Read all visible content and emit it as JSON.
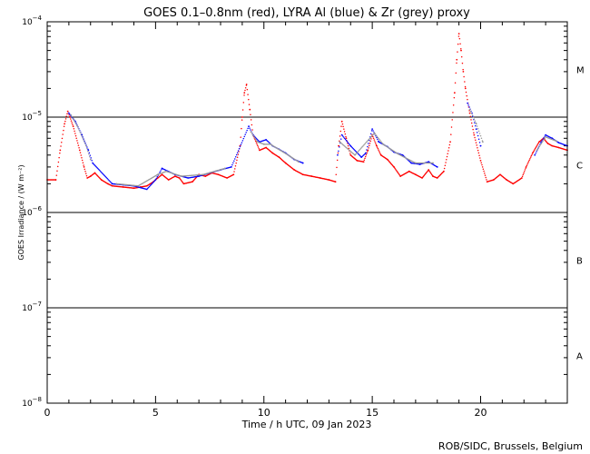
{
  "chart_data": {
    "type": "scatter",
    "title": "GOES 0.1–0.8nm (red), LYRA Al (blue) & Zr (grey) proxy",
    "xlabel": "Time / h UTC, 09 Jan 2023",
    "ylabel": "GOES Irradiance / (W m⁻²)",
    "xlim": [
      0,
      24
    ],
    "ylim": [
      1e-08,
      0.0001
    ],
    "yscale": "log",
    "x_ticks": [
      0,
      5,
      10,
      15,
      20
    ],
    "y_ticks": [
      {
        "value": 1e-08,
        "base": "10",
        "exp": "−8"
      },
      {
        "value": 1e-07,
        "base": "10",
        "exp": "−7"
      },
      {
        "value": 1e-06,
        "base": "10",
        "exp": "−6"
      },
      {
        "value": 1e-05,
        "base": "10",
        "exp": "−5"
      },
      {
        "value": 0.0001,
        "base": "10",
        "exp": "−4"
      }
    ],
    "flare_class_lines": [
      1e-07,
      1e-06,
      1e-05
    ],
    "flare_classes": [
      {
        "label": "A",
        "y": 3.16e-08
      },
      {
        "label": "B",
        "y": 3.16e-07
      },
      {
        "label": "C",
        "y": 3.16e-06
      },
      {
        "label": "M",
        "y": 3.16e-05
      }
    ],
    "series": [
      {
        "name": "GOES 0.1–0.8nm",
        "color": "#ff0000",
        "x": [
          0.0,
          0.4,
          0.6,
          0.8,
          0.95,
          1.05,
          1.2,
          1.5,
          1.7,
          1.85,
          2.0,
          2.2,
          2.5,
          2.8,
          3.0,
          3.5,
          4.0,
          4.3,
          4.6,
          4.9,
          5.1,
          5.3,
          5.6,
          5.9,
          6.1,
          6.3,
          6.7,
          7.0,
          7.3,
          7.6,
          7.9,
          8.3,
          8.6,
          8.9,
          9.0,
          9.1,
          9.2,
          9.35,
          9.5,
          9.8,
          10.1,
          10.4,
          10.7,
          11.0,
          11.4,
          11.8,
          12.2,
          12.6,
          13.0,
          13.3,
          13.45,
          13.6,
          13.8,
          14.0,
          14.3,
          14.6,
          14.8,
          15.0,
          15.2,
          15.4,
          15.7,
          16.0,
          16.3,
          16.7,
          17.0,
          17.3,
          17.6,
          17.8,
          18.0,
          18.3,
          18.6,
          18.8,
          18.9,
          19.0,
          19.1,
          19.2,
          19.3,
          19.5,
          19.7,
          20.0,
          20.3,
          20.6,
          20.9,
          21.2,
          21.5,
          21.9,
          22.1,
          22.4,
          22.7,
          22.9,
          23.1,
          23.3,
          23.6,
          24.0
        ],
        "y": [
          2.2e-06,
          2.2e-06,
          4.5e-06,
          8.5e-06,
          1.15e-05,
          1e-05,
          8e-06,
          4.5e-06,
          3e-06,
          2.3e-06,
          2.4e-06,
          2.6e-06,
          2.2e-06,
          2e-06,
          1.9e-06,
          1.85e-06,
          1.8e-06,
          1.85e-06,
          1.9e-06,
          2.1e-06,
          2.3e-06,
          2.5e-06,
          2.2e-06,
          2.4e-06,
          2.3e-06,
          2e-06,
          2.1e-06,
          2.5e-06,
          2.4e-06,
          2.6e-06,
          2.5e-06,
          2.3e-06,
          2.5e-06,
          5e-06,
          1e-05,
          1.8e-05,
          2.2e-05,
          1.2e-05,
          6.5e-06,
          4.5e-06,
          4.8e-06,
          4.2e-06,
          3.8e-06,
          3.3e-06,
          2.8e-06,
          2.5e-06,
          2.4e-06,
          2.3e-06,
          2.2e-06,
          2.1e-06,
          5e-06,
          9e-06,
          6e-06,
          4e-06,
          3.5e-06,
          3.4e-06,
          4.5e-06,
          6.5e-06,
          5e-06,
          4e-06,
          3.6e-06,
          3e-06,
          2.4e-06,
          2.7e-06,
          2.5e-06,
          2.3e-06,
          2.8e-06,
          2.4e-06,
          2.3e-06,
          2.7e-06,
          5.5e-06,
          1.8e-05,
          4e-05,
          7.5e-05,
          5e-05,
          3e-05,
          2e-05,
          1.1e-05,
          6.5e-06,
          3.5e-06,
          2.1e-06,
          2.2e-06,
          2.5e-06,
          2.2e-06,
          2e-06,
          2.3e-06,
          3e-06,
          4.2e-06,
          5.5e-06,
          6e-06,
          5.3e-06,
          5e-06,
          4.8e-06,
          4.5e-06
        ]
      },
      {
        "name": "LYRA Al",
        "color": "#0000ff",
        "x": [
          1.0,
          1.3,
          1.6,
          1.9,
          2.1,
          3.0,
          3.5,
          4.0,
          4.6,
          5.0,
          5.3,
          5.9,
          6.5,
          7.0,
          7.5,
          8.0,
          8.5,
          9.3,
          9.5,
          9.8,
          10.1,
          10.4,
          10.7,
          11.0,
          11.4,
          11.8,
          13.4,
          13.6,
          14.0,
          14.5,
          14.7,
          15.0,
          15.3,
          15.7,
          16.0,
          16.4,
          16.8,
          17.2,
          17.6,
          18.0,
          19.4,
          19.6,
          19.8,
          20.0,
          22.5,
          22.8,
          23.0,
          23.3,
          23.6,
          24.0
        ],
        "y": [
          1.1e-05,
          9e-06,
          6.5e-06,
          4.5e-06,
          3.3e-06,
          2e-06,
          1.95e-06,
          1.9e-06,
          1.75e-06,
          2.2e-06,
          2.9e-06,
          2.5e-06,
          2.3e-06,
          2.4e-06,
          2.6e-06,
          2.8e-06,
          3e-06,
          8e-06,
          6.5e-06,
          5.5e-06,
          5.8e-06,
          5e-06,
          4.6e-06,
          4.2e-06,
          3.6e-06,
          3.3e-06,
          4e-06,
          6.5e-06,
          5e-06,
          3.8e-06,
          4.2e-06,
          7.5e-06,
          5.5e-06,
          4.9e-06,
          4.3e-06,
          4e-06,
          3.3e-06,
          3.2e-06,
          3.4e-06,
          3e-06,
          1.4e-05,
          1.1e-05,
          7.5e-06,
          5e-06,
          4e-06,
          5.5e-06,
          6.5e-06,
          6e-06,
          5.4e-06,
          5e-06
        ]
      },
      {
        "name": "Zr proxy",
        "color": "#999999",
        "x": [
          1.1,
          1.4,
          1.8,
          2.0,
          3.2,
          4.2,
          5.1,
          5.5,
          6.2,
          7.2,
          8.2,
          9.4,
          9.7,
          10.0,
          10.3,
          11.2,
          11.6,
          13.5,
          14.2,
          15.1,
          15.5,
          16.2,
          17.0,
          17.8,
          19.5,
          19.8,
          20.1,
          22.6,
          23.0,
          23.5
        ],
        "y": [
          1.05e-05,
          8e-06,
          5e-06,
          3.6e-06,
          2e-06,
          1.9e-06,
          2.5e-06,
          2.7e-06,
          2.4e-06,
          2.5e-06,
          2.9e-06,
          7e-06,
          5.5e-06,
          5.2e-06,
          5.2e-06,
          3.9e-06,
          3.4e-06,
          5.5e-06,
          4e-06,
          6.8e-06,
          5.2e-06,
          4.1e-06,
          3.3e-06,
          3.3e-06,
          1.2e-05,
          8.5e-06,
          5.5e-06,
          4.5e-06,
          6.2e-06,
          5.6e-06
        ]
      }
    ]
  },
  "footer": {
    "credit": "ROB/SIDC, Brussels, Belgium"
  }
}
